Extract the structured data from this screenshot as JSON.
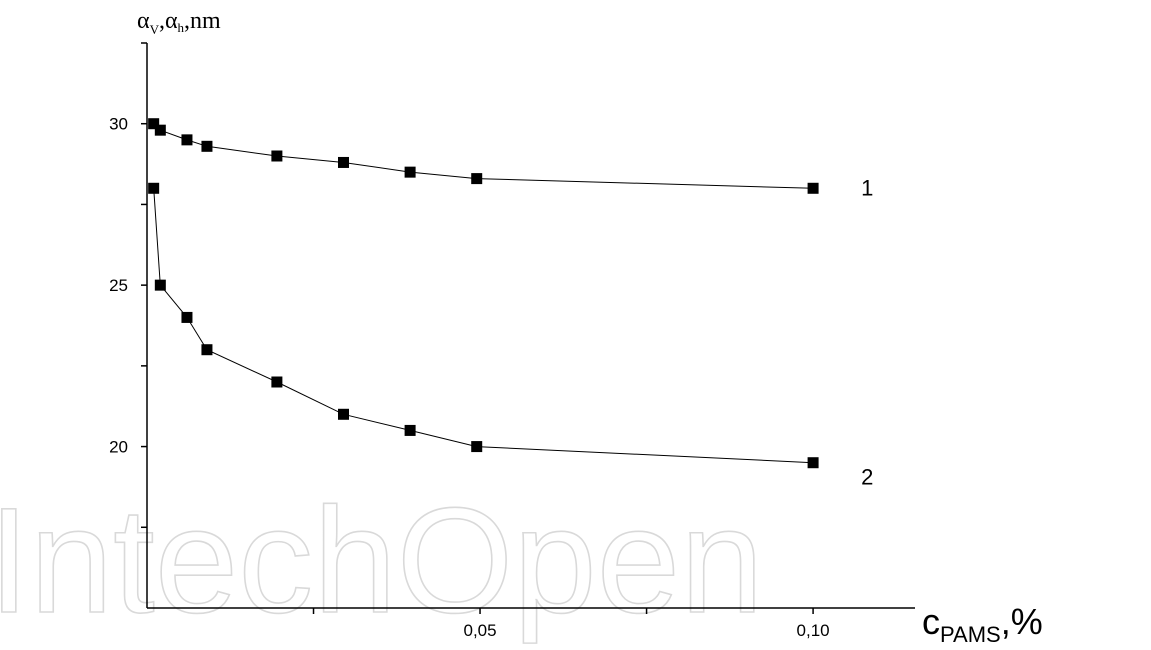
{
  "watermark": "IntechOpen",
  "chart_data": {
    "type": "line",
    "ylabel": {
      "var1": "α",
      "sub1": "V",
      "sep1": ",",
      "var2": "α",
      "sub2": "h",
      "suffix": ",nm"
    },
    "xlabel": {
      "var": "c",
      "sub": "PAMS",
      "suffix": ",%"
    },
    "xlim": [
      0.0,
      0.115
    ],
    "ylim": [
      15.0,
      32.5
    ],
    "x_ticks": [
      {
        "value": 0.025,
        "label": ""
      },
      {
        "value": 0.05,
        "label": "0,05"
      },
      {
        "value": 0.075,
        "label": ""
      },
      {
        "value": 0.1,
        "label": "0,10"
      }
    ],
    "y_ticks": [
      {
        "value": 17.5,
        "label": ""
      },
      {
        "value": 20,
        "label": "20"
      },
      {
        "value": 22.5,
        "label": ""
      },
      {
        "value": 25,
        "label": "25"
      },
      {
        "value": 27.5,
        "label": ""
      },
      {
        "value": 30,
        "label": "30"
      },
      {
        "value": 32.5,
        "label": ""
      }
    ],
    "series": [
      {
        "name": "1",
        "x": [
          0.001,
          0.002,
          0.006,
          0.009,
          0.0195,
          0.0295,
          0.0395,
          0.0495,
          0.1
        ],
        "y": [
          30.0,
          29.8,
          29.5,
          29.3,
          29.0,
          28.8,
          28.5,
          28.3,
          28.0
        ]
      },
      {
        "name": "2",
        "x": [
          0.001,
          0.002,
          0.006,
          0.009,
          0.0195,
          0.0295,
          0.0395,
          0.0495,
          0.1
        ],
        "y": [
          28.0,
          25.0,
          24.0,
          23.0,
          22.0,
          21.0,
          20.5,
          20.0,
          19.5
        ]
      }
    ],
    "curve_labels": [
      {
        "text": "1",
        "series": 0
      },
      {
        "text": "2",
        "series": 1
      }
    ],
    "grid": false,
    "marker": "square"
  }
}
